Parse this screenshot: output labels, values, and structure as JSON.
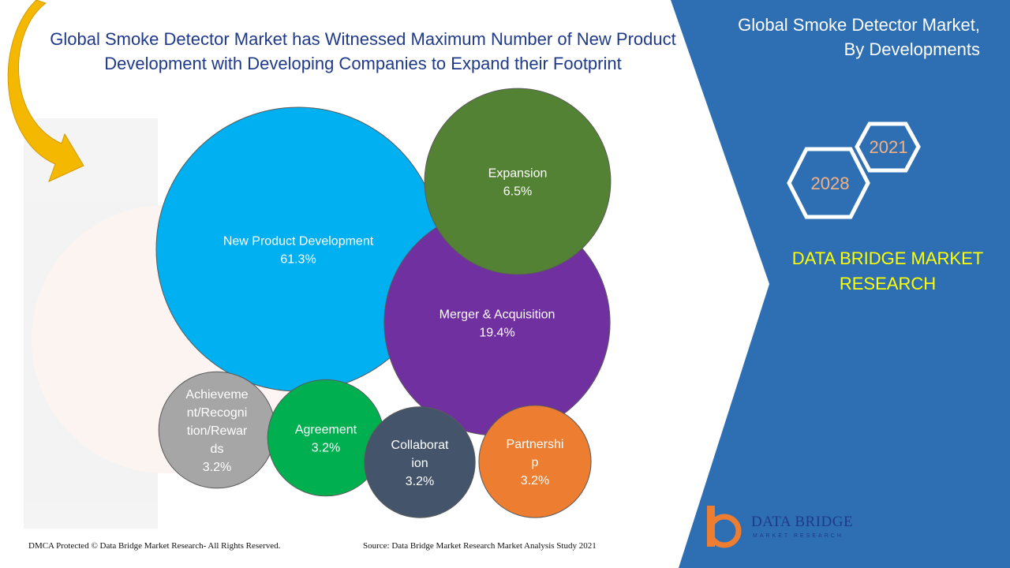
{
  "header": {
    "title": "Global Smoke Detector Market has Witnessed Maximum Number of New Product Development with Developing Companies to Expand their Footprint"
  },
  "side_panel": {
    "title_line1": "Global Smoke Detector Market,",
    "title_line2": "By Developments",
    "year_start": "2021",
    "year_end": "2028",
    "brand_line1": "DATA BRIDGE MARKET",
    "brand_line2": "RESEARCH"
  },
  "footer": {
    "copyright": "DMCA Protected © Data Bridge Market Research- All Rights Reserved.",
    "source": "Source: Data Bridge Market Research Market Analysis Study 2021"
  },
  "logo": {
    "name": "DATA BRIDGE",
    "tagline": "MARKET RESEARCH"
  },
  "colors": {
    "panel_blue": "#2e6fb4",
    "title_blue": "#1f3a8a",
    "brand_yellow": "#ffff00",
    "year_orange": "#f4b183",
    "arrow_gold": "#f5b800"
  },
  "chart_data": {
    "type": "bubble",
    "unit": "%",
    "categories": [
      "New Product Development",
      "Merger & Acquisition",
      "Expansion",
      "Achievement/Recognition/Rewards",
      "Agreement",
      "Collaboration",
      "Partnership"
    ],
    "values": [
      61.3,
      19.4,
      6.5,
      3.2,
      3.2,
      3.2,
      3.2
    ],
    "value_labels": [
      "61.3%",
      "19.4%",
      "6.5%",
      "3.2%",
      "3.2%",
      "3.2%",
      "3.2%"
    ],
    "label_lines": [
      [
        "New Product Development"
      ],
      [
        "Merger & Acquisition"
      ],
      [
        "Expansion"
      ],
      [
        "Achieveme",
        "nt/Recogni",
        "tion/Rewar",
        "ds"
      ],
      [
        "Agreement"
      ],
      [
        "Collaborat",
        "ion"
      ],
      [
        "Partnershi",
        "p"
      ]
    ],
    "colors": [
      "#00b0f0",
      "#7030a0",
      "#548235",
      "#a6a6a6",
      "#00b050",
      "#44546a",
      "#ed7d31"
    ]
  }
}
